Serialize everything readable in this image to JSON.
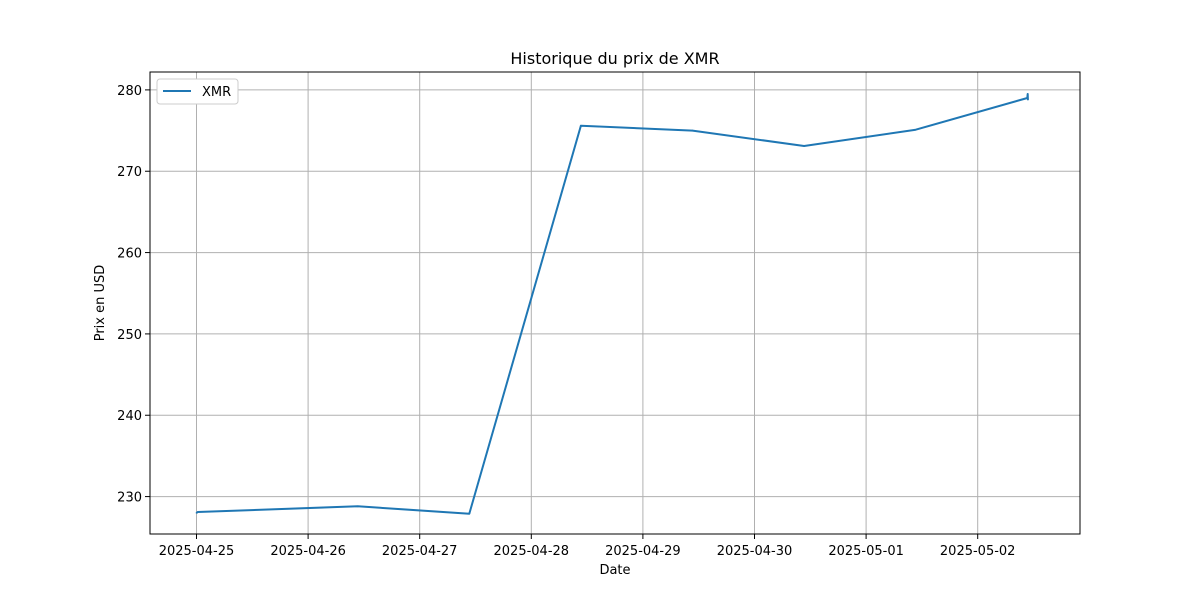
{
  "chart_data": {
    "type": "line",
    "title": "Historique du prix de XMR",
    "xlabel": "Date",
    "ylabel": "Prix en USD",
    "x_ticks": [
      "2025-04-25",
      "2025-04-26",
      "2025-04-27",
      "2025-04-28",
      "2025-04-29",
      "2025-04-30",
      "2025-05-01",
      "2025-05-02"
    ],
    "y_ticks": [
      230,
      240,
      250,
      260,
      270,
      280
    ],
    "ylim": [
      225.4,
      282.2
    ],
    "xlim": [
      "2025-04-24T14:00",
      "2025-05-02T22:00"
    ],
    "grid": true,
    "legend": "top-left",
    "series": [
      {
        "name": "XMR",
        "color": "#1f77b4",
        "points": [
          {
            "x": "2025-04-25T00:00",
            "y": 228.0
          },
          {
            "x": "2025-04-25T00:15",
            "y": 228.1
          },
          {
            "x": "2025-04-26T10:40",
            "y": 228.8
          },
          {
            "x": "2025-04-27T10:40",
            "y": 227.9
          },
          {
            "x": "2025-04-28T10:40",
            "y": 275.6
          },
          {
            "x": "2025-04-29T10:40",
            "y": 275.0
          },
          {
            "x": "2025-04-30T10:40",
            "y": 273.1
          },
          {
            "x": "2025-05-01T10:40",
            "y": 275.1
          },
          {
            "x": "2025-05-02T10:40",
            "y": 279.0
          },
          {
            "x": "2025-05-02T10:45",
            "y": 279.5
          },
          {
            "x": "2025-05-02T10:48",
            "y": 278.8
          }
        ]
      }
    ]
  }
}
